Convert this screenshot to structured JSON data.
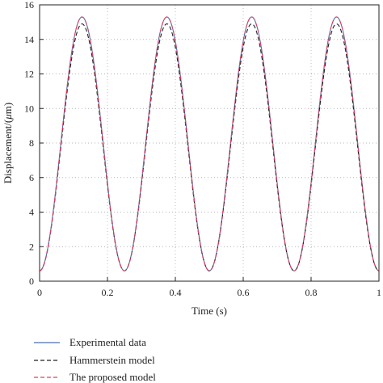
{
  "chart_data": {
    "type": "line",
    "title": "",
    "xlabel": "Time (s)",
    "ylabel_prefix": "Displacement/(",
    "ylabel_unit_italic": "μ",
    "ylabel_suffix": "m)",
    "xlim": [
      0,
      1
    ],
    "ylim": [
      0,
      16
    ],
    "xticks": [
      0,
      0.2,
      0.4,
      0.6,
      0.8,
      1
    ],
    "xtick_labels": [
      "0",
      "0.2",
      "0.4",
      "0.6",
      "0.8",
      "1"
    ],
    "yticks": [
      0,
      2,
      4,
      6,
      8,
      10,
      12,
      14,
      16
    ],
    "ytick_labels": [
      "0",
      "2",
      "4",
      "6",
      "8",
      "10",
      "12",
      "14",
      "16"
    ],
    "grid": true,
    "legend_position": "below",
    "series": [
      {
        "name": "Experimental data",
        "color": "#4a6fb5",
        "style": "solid",
        "x": [
          0,
          0.0625,
          0.125,
          0.1875,
          0.25,
          0.3125,
          0.375,
          0.4375,
          0.5,
          0.5625,
          0.625,
          0.6875,
          0.75,
          0.8125,
          0.875,
          0.9375,
          1.0
        ],
        "y": [
          0.6,
          8.0,
          15.3,
          8.0,
          0.6,
          8.0,
          15.3,
          8.0,
          0.6,
          8.0,
          15.3,
          8.0,
          0.6,
          8.0,
          15.3,
          8.0,
          0.6
        ]
      },
      {
        "name": "Hammerstein model",
        "color": "#222222",
        "style": "dashed",
        "x": [
          0,
          0.0625,
          0.125,
          0.1875,
          0.25,
          0.3125,
          0.375,
          0.4375,
          0.5,
          0.5625,
          0.625,
          0.6875,
          0.75,
          0.8125,
          0.875,
          0.9375,
          1.0
        ],
        "y": [
          0.6,
          7.7,
          14.9,
          7.7,
          0.6,
          7.7,
          14.9,
          7.7,
          0.6,
          7.7,
          14.9,
          7.7,
          0.6,
          7.7,
          14.9,
          7.7,
          0.6
        ]
      },
      {
        "name": "The proposed model",
        "color": "#e0405e",
        "style": "dashed",
        "x": [
          0,
          0.0625,
          0.125,
          0.1875,
          0.25,
          0.3125,
          0.375,
          0.4375,
          0.5,
          0.5625,
          0.625,
          0.6875,
          0.75,
          0.8125,
          0.875,
          0.9375,
          1.0
        ],
        "y": [
          0.6,
          8.0,
          15.3,
          8.0,
          0.6,
          8.0,
          15.3,
          8.0,
          0.6,
          8.0,
          15.3,
          8.0,
          0.6,
          8.0,
          15.3,
          8.0,
          0.6
        ]
      }
    ]
  }
}
